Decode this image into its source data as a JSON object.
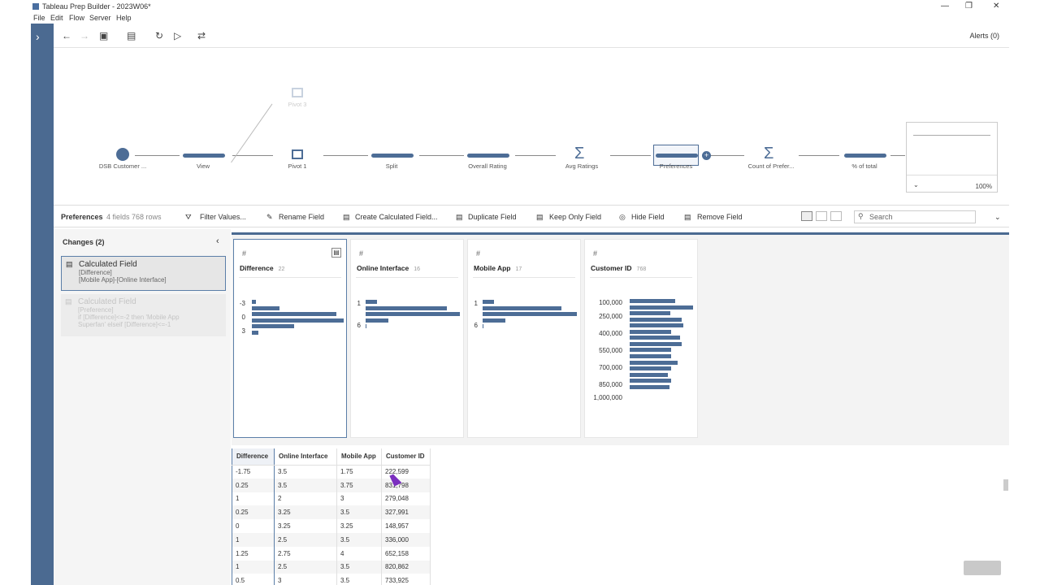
{
  "window": {
    "title": "Tableau Prep Builder - 2023W06*",
    "minimize": "—",
    "restore": "❐",
    "close": "✕"
  },
  "menu": [
    "File",
    "Edit",
    "Flow",
    "Server",
    "Help"
  ],
  "toolbar": {
    "alerts": "Alerts (0)"
  },
  "flow": {
    "nodes": [
      "DSB Customer ...",
      "View",
      "Pivot 1",
      "Split",
      "Overall Rating",
      "Avg Ratings",
      "Preferences",
      "Count of Prefer...",
      "% of total"
    ],
    "ghost_node": "Pivot 3",
    "minimap_zoom": "100%"
  },
  "step": {
    "name": "Preferences",
    "summary": "4 fields  768 rows",
    "actions": [
      "Filter Values...",
      "Rename Field",
      "Create Calculated Field...",
      "Duplicate Field",
      "Keep Only Field",
      "Hide Field",
      "Remove Field"
    ],
    "search_placeholder": "Search"
  },
  "changes": {
    "title": "Changes (2)",
    "items": [
      {
        "type": "Calculated Field",
        "line1": "[Difference]",
        "line2": "[Mobile App]-[Online Interface]",
        "line3": ""
      },
      {
        "type": "Calculated Field",
        "line1": "[Preference]",
        "line2": "if [Difference]<=-2 then 'Mobile App",
        "line3": "Superfan' elseif [Difference]<=-1"
      }
    ]
  },
  "profile": {
    "cards": [
      {
        "name": "Difference",
        "count": "22",
        "labels": [
          "-3",
          "0",
          "3"
        ],
        "bars": [
          0.04,
          0.3,
          0.92,
          1.0,
          0.46,
          0.07
        ]
      },
      {
        "name": "Online Interface",
        "count": "16",
        "labels": [
          "1",
          "6"
        ],
        "bars": [
          0.12,
          0.86,
          1.0,
          0.24,
          0.01
        ]
      },
      {
        "name": "Mobile App",
        "count": "17",
        "labels": [
          "1",
          "6"
        ],
        "bars": [
          0.12,
          0.84,
          1.0,
          0.24,
          0.01
        ]
      },
      {
        "name": "Customer ID",
        "count": "768",
        "labels": [
          "100,000",
          "250,000",
          "400,000",
          "550,000",
          "700,000",
          "850,000",
          "1,000,000"
        ],
        "bars": [
          0.72,
          1.0,
          0.64,
          0.82,
          0.85,
          0.66,
          0.8,
          0.82,
          0.65,
          0.66,
          0.76,
          0.65,
          0.6,
          0.66,
          0.63
        ]
      }
    ]
  },
  "grid": {
    "columns": [
      "Difference",
      "Online Interface",
      "Mobile App",
      "Customer ID"
    ],
    "rows": [
      [
        "-1.75",
        "3.5",
        "1.75",
        "222,599"
      ],
      [
        "0.25",
        "3.5",
        "3.75",
        "831,798"
      ],
      [
        "1",
        "2",
        "3",
        "279,048"
      ],
      [
        "0.25",
        "3.25",
        "3.5",
        "327,991"
      ],
      [
        "0",
        "3.25",
        "3.25",
        "148,957"
      ],
      [
        "1",
        "2.5",
        "3.5",
        "336,000"
      ],
      [
        "1.25",
        "2.75",
        "4",
        "652,158"
      ],
      [
        "1",
        "2.5",
        "3.5",
        "820,862"
      ],
      [
        "0.5",
        "3",
        "3.5",
        "733,925"
      ]
    ]
  }
}
